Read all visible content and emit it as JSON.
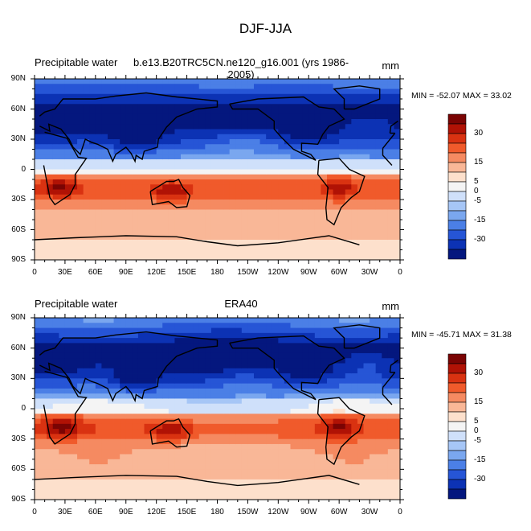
{
  "figure_title": "DJF-JJA",
  "chart_data": [
    {
      "type": "heatmap",
      "variable": "Precipitable water",
      "case": "b.e13.B20TRC5CN.ne120_g16.001 (yrs 1986-2005)",
      "units": "mm",
      "stats": "MIN = -52.07 MAX =  33.02",
      "x_ticks": [
        "0",
        "30E",
        "60E",
        "90E",
        "120E",
        "150E",
        "180",
        "150W",
        "120W",
        "90W",
        "60W",
        "30W",
        "0"
      ],
      "y_ticks": [
        "90N",
        "60N",
        "30N",
        "0",
        "30S",
        "60S",
        "90S"
      ],
      "colorbar_levels": [
        "30",
        "15",
        "5",
        "0",
        "-5",
        "-15",
        "-30"
      ],
      "map": "global cylindrical equidistant, continents outlined"
    },
    {
      "type": "heatmap",
      "variable": "Precipitable water",
      "case": "ERA40",
      "units": "mm",
      "stats": "MIN = -45.71 MAX =  31.38",
      "x_ticks": [
        "0",
        "30E",
        "60E",
        "90E",
        "120E",
        "150E",
        "180",
        "150W",
        "120W",
        "90W",
        "60W",
        "30W",
        "0"
      ],
      "y_ticks": [
        "90N",
        "60N",
        "30N",
        "0",
        "30S",
        "60S",
        "90S"
      ],
      "colorbar_levels": [
        "30",
        "15",
        "5",
        "0",
        "-5",
        "-15",
        "-30"
      ],
      "map": "global cylindrical equidistant, continents outlined"
    }
  ],
  "colors": {
    "palette": [
      "#7a0403",
      "#b01205",
      "#d93211",
      "#f05a2b",
      "#f58a61",
      "#f9b797",
      "#fde0cc",
      "#f4f4f4",
      "#cfe0fa",
      "#a6c6f6",
      "#7aa7ef",
      "#4b7fe6",
      "#2655d6",
      "#0c32b4",
      "#04177e"
    ]
  }
}
